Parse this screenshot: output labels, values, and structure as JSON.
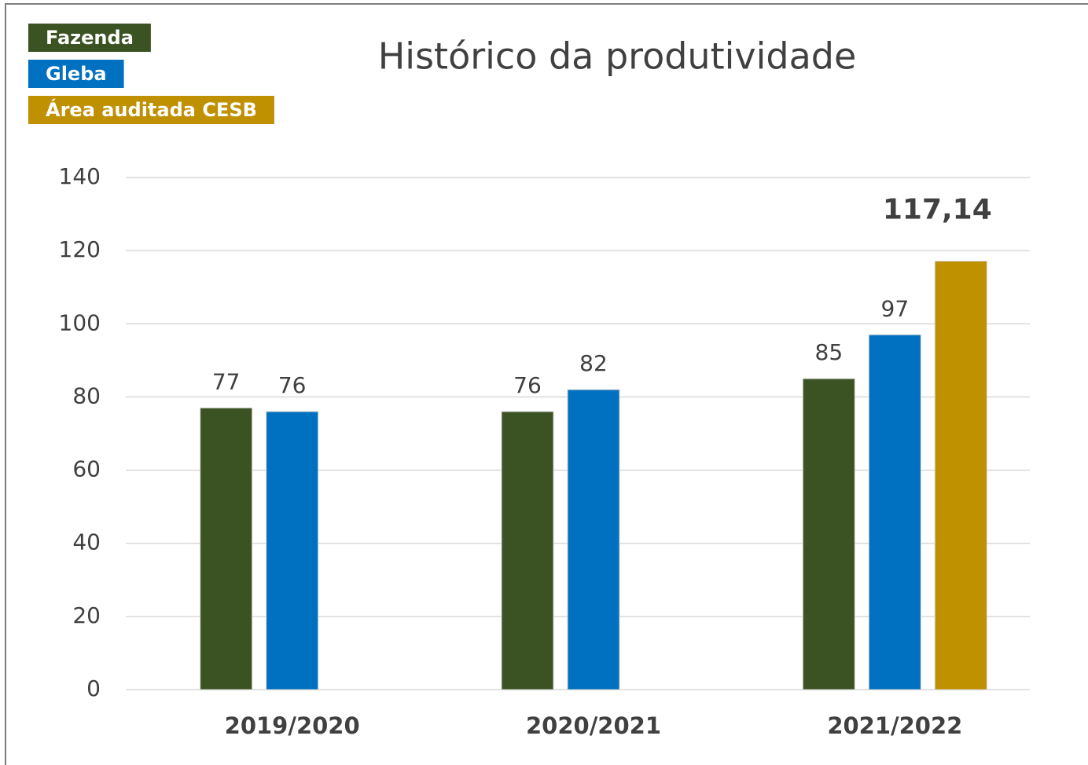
{
  "chart_data": {
    "type": "bar",
    "title": "Histórico da produtividade",
    "categories": [
      "2019/2020",
      "2020/2021",
      "2021/2022"
    ],
    "series": [
      {
        "name": "Fazenda",
        "color": "#3b5323",
        "values": [
          77,
          76,
          85
        ]
      },
      {
        "name": "Gleba",
        "color": "#0070c0",
        "values": [
          76,
          82,
          97
        ]
      },
      {
        "name": "Área auditada CESB",
        "color": "#bf9000",
        "values": [
          null,
          null,
          117.14
        ],
        "value_labels": [
          null,
          null,
          "117,14"
        ]
      }
    ],
    "ylim": [
      0,
      140
    ],
    "yticks": [
      0,
      20,
      40,
      60,
      80,
      100,
      120,
      140
    ],
    "grid": true,
    "legend": "top-left"
  }
}
